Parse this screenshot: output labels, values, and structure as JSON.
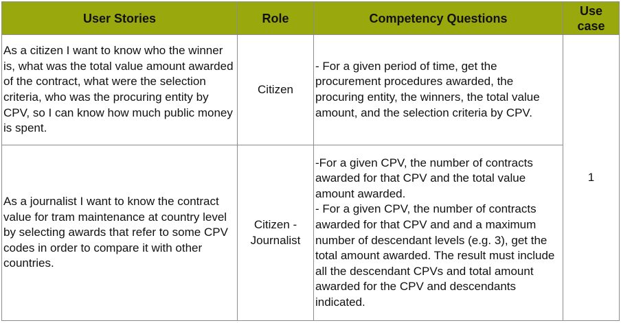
{
  "colors": {
    "header_bg": "#99a80c",
    "header_text": "#ffffff",
    "border": "#8c8c8c"
  },
  "headers": {
    "user_stories": "User Stories",
    "role": "Role",
    "competency_questions": "Competency Questions",
    "use_case": "Use case"
  },
  "rows": [
    {
      "story": "As a citizen I want to know who the winner is, what was the total value amount awarded of the contract, what were the selection criteria, who was the procuring entity by CPV, so I can know how much public money is spent.",
      "role": "Citizen",
      "questions": [
        "- For a given period of time, get the procurement procedures awarded, the procuring entity, the winners, the total value amount, and the selection criteria by CPV."
      ]
    },
    {
      "story": "As a journalist I want to know the contract value for tram maintenance at country level by selecting awards that refer to some CPV codes in order to compare it with other countries.",
      "role": "Citizen - Journalist",
      "questions": [
        "-For a given CPV, the number of contracts awarded for that CPV and the total value amount awarded.",
        "- For a given CPV, the number of contracts awarded for that CPV and and a maximum number of descendant levels (e.g. 3), get the total amount awarded. The result must include all the descendant CPVs and total amount awarded for the CPV and descendants indicated."
      ]
    }
  ],
  "use_case_value": "1"
}
